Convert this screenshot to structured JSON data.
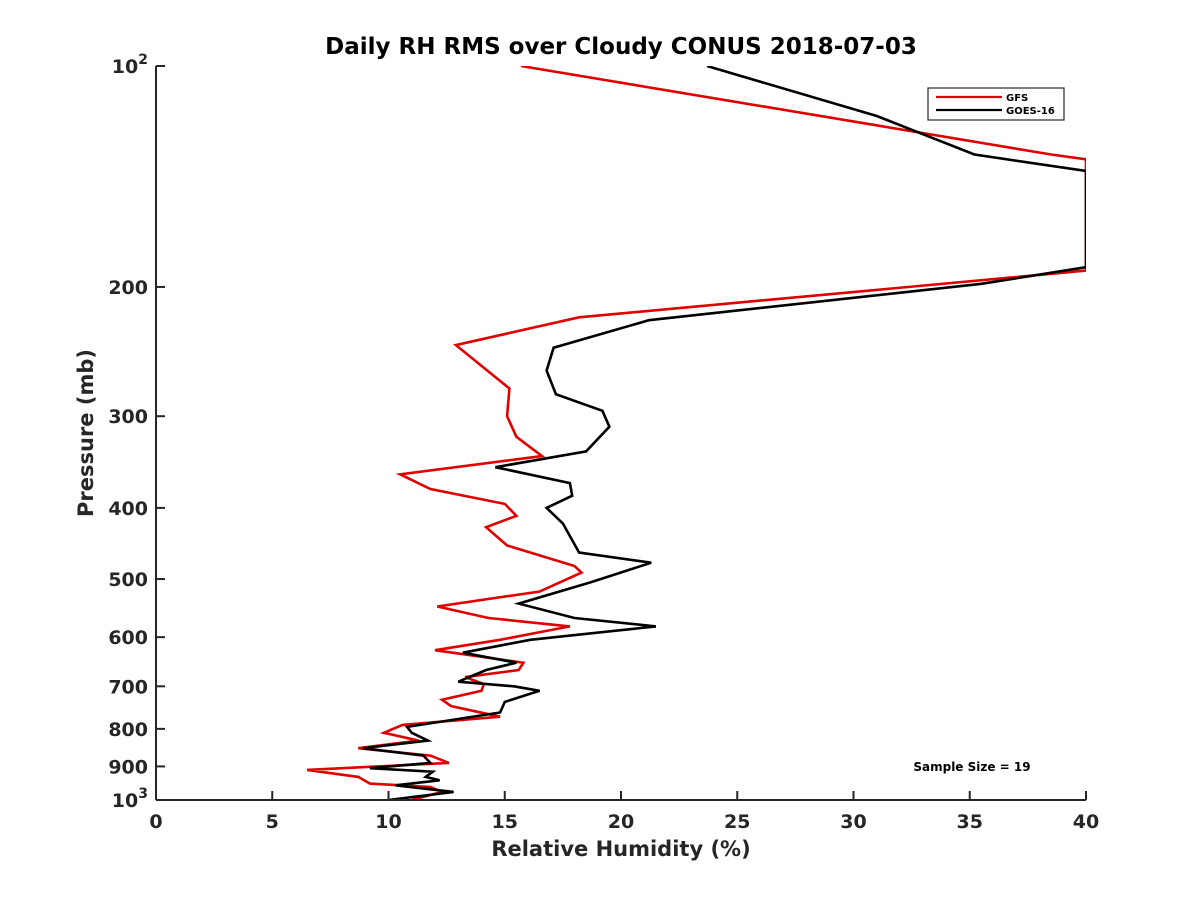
{
  "chart_data": {
    "type": "line",
    "title": "Daily RH RMS over Cloudy CONUS 2018-07-03",
    "xlabel": "Relative Humidity (%)",
    "ylabel": "Pressure (mb)",
    "xlim": [
      0,
      40
    ],
    "ylim": [
      100,
      1000
    ],
    "y_scale": "log",
    "y_reversed": true,
    "grid": false,
    "legend_position": "top-right",
    "x_ticks": [
      0,
      5,
      10,
      15,
      20,
      25,
      30,
      35,
      40
    ],
    "x_tick_labels": [
      "0",
      "5",
      "10",
      "15",
      "20",
      "25",
      "30",
      "35",
      "40"
    ],
    "y_ticks": [
      {
        "value": 100,
        "base": "10",
        "exp": "2"
      },
      {
        "value": 200,
        "label": "200"
      },
      {
        "value": 300,
        "label": "300"
      },
      {
        "value": 400,
        "label": "400"
      },
      {
        "value": 500,
        "label": "500"
      },
      {
        "value": 600,
        "label": "600"
      },
      {
        "value": 700,
        "label": "700"
      },
      {
        "value": 800,
        "label": "800"
      },
      {
        "value": 900,
        "label": "900"
      },
      {
        "value": 1000,
        "base": "10",
        "exp": "3"
      }
    ],
    "annotation": "Sample Size = 19",
    "series": [
      {
        "name": "GFS",
        "color": "#e00000",
        "points": [
          [
            15.7,
            100
          ],
          [
            38.5,
            132
          ],
          [
            40,
            134
          ],
          [
            40,
            190
          ],
          [
            18.2,
            220
          ],
          [
            12.9,
            240
          ],
          [
            15.2,
            275
          ],
          [
            15.1,
            300
          ],
          [
            15.5,
            320
          ],
          [
            16.6,
            340
          ],
          [
            10.5,
            360
          ],
          [
            11.8,
            377
          ],
          [
            15.0,
            395
          ],
          [
            15.5,
            410
          ],
          [
            14.2,
            425
          ],
          [
            15.1,
            450
          ],
          [
            18.0,
            480
          ],
          [
            18.3,
            490
          ],
          [
            16.5,
            520
          ],
          [
            12.1,
            545
          ],
          [
            14.3,
            565
          ],
          [
            17.8,
            580
          ],
          [
            14.8,
            605
          ],
          [
            12.0,
            625
          ],
          [
            15.8,
            650
          ],
          [
            15.6,
            665
          ],
          [
            13.3,
            680
          ],
          [
            14.1,
            695
          ],
          [
            14.0,
            710
          ],
          [
            12.3,
            730
          ],
          [
            12.7,
            745
          ],
          [
            14.8,
            770
          ],
          [
            10.6,
            790
          ],
          [
            9.8,
            810
          ],
          [
            11.3,
            830
          ],
          [
            8.7,
            850
          ],
          [
            11.8,
            870
          ],
          [
            12.6,
            890
          ],
          [
            6.5,
            910
          ],
          [
            8.7,
            930
          ],
          [
            9.2,
            950
          ],
          [
            11.8,
            960
          ],
          [
            12.3,
            975
          ],
          [
            11.0,
            1000
          ]
        ]
      },
      {
        "name": "GOES-16",
        "color": "#000000",
        "points": [
          [
            23.7,
            100
          ],
          [
            31.0,
            117
          ],
          [
            35.2,
            132
          ],
          [
            40,
            139
          ],
          [
            40,
            188
          ],
          [
            35.5,
            198
          ],
          [
            21.2,
            222
          ],
          [
            17.1,
            242
          ],
          [
            16.8,
            260
          ],
          [
            17.2,
            280
          ],
          [
            19.2,
            295
          ],
          [
            19.5,
            310
          ],
          [
            18.5,
            335
          ],
          [
            14.6,
            352
          ],
          [
            17.8,
            370
          ],
          [
            17.9,
            385
          ],
          [
            16.8,
            400
          ],
          [
            17.5,
            420
          ],
          [
            18.2,
            460
          ],
          [
            21.3,
            475
          ],
          [
            18.7,
            505
          ],
          [
            15.6,
            540
          ],
          [
            18.0,
            565
          ],
          [
            21.5,
            580
          ],
          [
            16.1,
            605
          ],
          [
            13.2,
            630
          ],
          [
            15.5,
            650
          ],
          [
            14.2,
            665
          ],
          [
            13.0,
            690
          ],
          [
            15.4,
            700
          ],
          [
            16.5,
            710
          ],
          [
            15.0,
            735
          ],
          [
            14.8,
            760
          ],
          [
            10.8,
            795
          ],
          [
            11.0,
            810
          ],
          [
            11.7,
            830
          ],
          [
            8.9,
            850
          ],
          [
            11.5,
            870
          ],
          [
            11.8,
            890
          ],
          [
            9.2,
            905
          ],
          [
            11.9,
            915
          ],
          [
            11.6,
            930
          ],
          [
            12.2,
            940
          ],
          [
            10.3,
            955
          ],
          [
            12.8,
            975
          ],
          [
            10.0,
            1000
          ]
        ]
      }
    ]
  }
}
